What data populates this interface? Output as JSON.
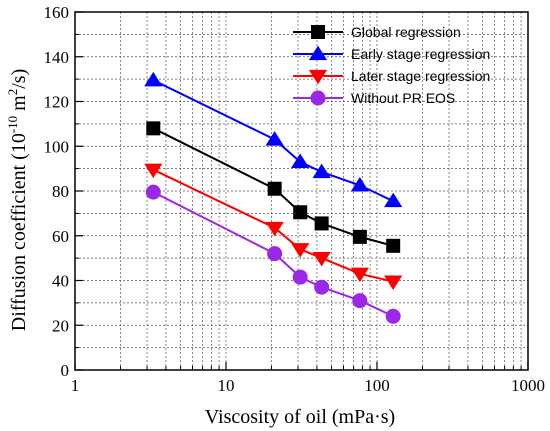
{
  "chart_data": {
    "type": "line",
    "x_scale": "log",
    "xlim": [
      1,
      1000
    ],
    "ylim": [
      0,
      160
    ],
    "xlabel": "Viscosity of oil (mPa·s)",
    "ylabel": "Diffusion coefficient (10",
    "ylabel_sup1": "-10",
    "ylabel_mid": " m",
    "ylabel_sup2": "2",
    "ylabel_end": "/s)",
    "x_ticks": [
      {
        "value": 1,
        "label": "1"
      },
      {
        "value": 10,
        "label": "10"
      },
      {
        "value": 100,
        "label": "100"
      },
      {
        "value": 1000,
        "label": "1000"
      }
    ],
    "y_ticks": [
      {
        "value": 0,
        "label": "0"
      },
      {
        "value": 20,
        "label": "20"
      },
      {
        "value": 40,
        "label": "40"
      },
      {
        "value": 60,
        "label": "60"
      },
      {
        "value": 80,
        "label": "80"
      },
      {
        "value": 100,
        "label": "100"
      },
      {
        "value": 120,
        "label": "120"
      },
      {
        "value": 140,
        "label": "140"
      },
      {
        "value": 160,
        "label": "160"
      }
    ],
    "grid": true,
    "legend_position": "top-right",
    "series": [
      {
        "name": "Global regression",
        "marker": "square",
        "color": "#000000",
        "x": [
          3.3,
          21,
          31,
          43,
          77,
          128
        ],
        "y": [
          108,
          81,
          70.5,
          65.5,
          59.5,
          55.5
        ]
      },
      {
        "name": "Early stage regression",
        "marker": "triangle-up",
        "color": "#0000ff",
        "x": [
          3.3,
          21,
          31,
          43,
          77,
          128
        ],
        "y": [
          129.5,
          103,
          93,
          88.5,
          82.5,
          75.5
        ]
      },
      {
        "name": "Later stage regression",
        "marker": "triangle-down",
        "color": "#ff0000",
        "x": [
          3.3,
          21,
          31,
          43,
          77,
          128
        ],
        "y": [
          89.5,
          63.5,
          54,
          50,
          43,
          39.5
        ]
      },
      {
        "name": "Without PR EOS",
        "marker": "circle",
        "color": "#9b27e8",
        "x": [
          3.3,
          21,
          31,
          43,
          77,
          128
        ],
        "y": [
          79.5,
          52,
          41.5,
          37,
          31,
          24
        ]
      }
    ]
  }
}
